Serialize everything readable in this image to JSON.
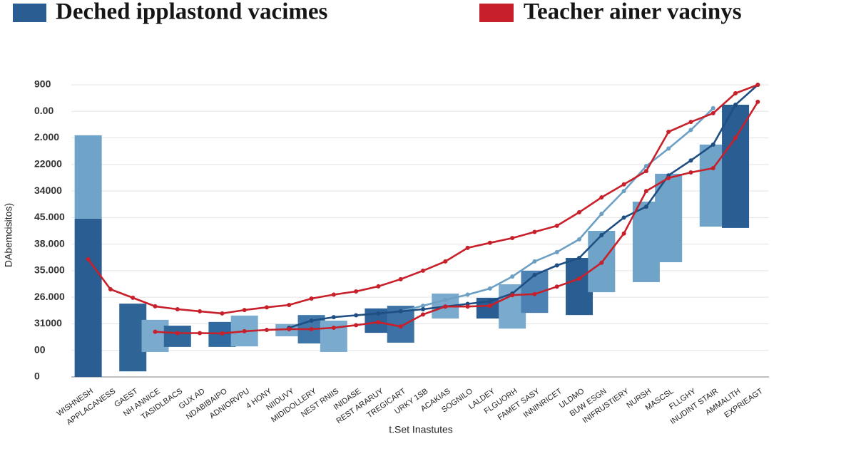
{
  "chart_data": {
    "type": "floating-bar",
    "legend": [
      {
        "name": "Deched ipplastond vacimes",
        "color": "#2a5d92"
      },
      {
        "name": "Teacher ainer vacinys",
        "color": "#c8202a"
      }
    ],
    "y_axis_label": "DAbemcisitos)",
    "x_axis_label": "t.Set Inastutes",
    "categories": [
      "WISHNESH",
      "APPLACANESS",
      "GAEST",
      "NH ANNICE",
      "TASIDLBACS",
      "GUX AD",
      "NDABIBAIPO",
      "ADNIORVPU",
      "4 HONY",
      "NIIDUVY",
      "MIDIDOLLERY",
      "NEST RNIIS",
      "INIDASE",
      "REST ARARUY",
      "TREGICART",
      "URKY 1SB",
      "ACAKIAS",
      "SOGNILO",
      "LALDEY",
      "FLGUORH",
      "FAMET SASY",
      "INNINRICET",
      "ULDMO",
      "BUW ESGN",
      "INIFRUSTIERY",
      "NURSH",
      "MASCSL",
      "FLLGHY",
      "INUDINT STAIR",
      "AMMALITH",
      "EXPRIEAGT"
    ],
    "ylim": [
      0,
      1100
    ],
    "yticks": [
      0,
      {
        "value": 100,
        "label": "00"
      },
      {
        "value": 200,
        "label": "31000"
      },
      {
        "value": 300,
        "label": "26.000"
      },
      {
        "value": 400,
        "label": "35.000"
      },
      {
        "value": 500,
        "label": "38.000"
      },
      {
        "value": 600,
        "label": "45.000"
      },
      {
        "value": 700,
        "label": "34000"
      },
      {
        "value": 800,
        "label": "22000"
      },
      {
        "value": 900,
        "label": "2.000"
      },
      {
        "value": 1000,
        "label": "0.00"
      },
      {
        "value": 1100,
        "label": "900"
      }
    ],
    "grid": true,
    "bar_series": [
      {
        "low": [
          0,
          null,
          21,
          94,
          113,
          null,
          113,
          115,
          null,
          153,
          126,
          94,
          null,
          166,
          129,
          null,
          220,
          null,
          220,
          182,
          241,
          null,
          233,
          319,
          null,
          357,
          432,
          null,
          566,
          561,
          null
        ],
        "high": [
          596,
          null,
          276,
          215,
          193,
          null,
          207,
          231,
          null,
          199,
          233,
          212,
          null,
          258,
          268,
          null,
          314,
          null,
          298,
          349,
          400,
          null,
          448,
          550,
          null,
          660,
          765,
          null,
          875,
          1025,
          null
        ],
        "colors": [
          "#2a5d92",
          null,
          "#2f6496",
          "#7aaacd",
          "#30679a",
          null,
          "#2f6aa0",
          "#7aaccf",
          null,
          "#7aaacd",
          "#3f77aa",
          "#7aaacd",
          null,
          "#2d6398",
          "#3c72a6",
          null,
          "#7aaacd",
          null,
          "#2a5d92",
          "#7aaacd",
          "#4b82b3",
          null,
          "#2a5d92",
          "#6fa3c7",
          null,
          "#6fa3c7",
          "#6fa3c7",
          null,
          "#6fa3c7",
          "#2a5d92",
          null
        ]
      },
      {
        "low": [
          596,
          null,
          null,
          null,
          null,
          null,
          null,
          null,
          null,
          null,
          null,
          null,
          null,
          null,
          null,
          null,
          null,
          null,
          null,
          null,
          null,
          null,
          null,
          null,
          null,
          null,
          null,
          null,
          null,
          null,
          null
        ],
        "high": [
          910,
          null,
          null,
          null,
          null,
          null,
          null,
          null,
          null,
          null,
          null,
          null,
          null,
          null,
          null,
          null,
          null,
          null,
          null,
          null,
          null,
          null,
          null,
          null,
          null,
          null,
          null,
          null,
          null,
          null,
          null
        ],
        "colors": [
          "#6fa3c7",
          null,
          null,
          null,
          null,
          null,
          null,
          null,
          null,
          null,
          null,
          null,
          null,
          null,
          null,
          null,
          null,
          null,
          null,
          null,
          null,
          null,
          null,
          null,
          null,
          null,
          null,
          null,
          null,
          null,
          null
        ]
      }
    ],
    "line_series": [
      {
        "color": "#6c9fc4",
        "values": [
          null,
          null,
          null,
          null,
          null,
          null,
          null,
          null,
          null,
          null,
          null,
          null,
          null,
          null,
          247,
          268,
          290,
          310,
          333,
          378,
          435,
          470,
          518,
          614,
          700,
          794,
          860,
          930,
          1012,
          null,
          null
        ]
      },
      {
        "color": "#1f4e82",
        "values": [
          null,
          null,
          null,
          null,
          null,
          null,
          null,
          null,
          null,
          185,
          212,
          225,
          232,
          239,
          247,
          255,
          265,
          275,
          285,
          314,
          384,
          420,
          448,
          534,
          600,
          641,
          759,
          815,
          875,
          1025,
          1100
        ]
      },
      {
        "color": "#c8202a",
        "values": [
          null,
          null,
          null,
          170,
          165,
          165,
          164,
          172,
          177,
          180,
          180,
          185,
          195,
          206,
          190,
          235,
          265,
          265,
          268,
          308,
          312,
          340,
          370,
          430,
          540,
          700,
          749,
          770,
          786,
          900,
          1036
        ]
      },
      {
        "color": "#c8202a",
        "values": [
          443,
          330,
          298,
          266,
          255,
          247,
          239,
          252,
          262,
          271,
          295,
          310,
          322,
          341,
          368,
          400,
          435,
          486,
          505,
          523,
          546,
          569,
          620,
          676,
          725,
          775,
          923,
          960,
          993,
          1068,
          1100
        ]
      }
    ]
  }
}
